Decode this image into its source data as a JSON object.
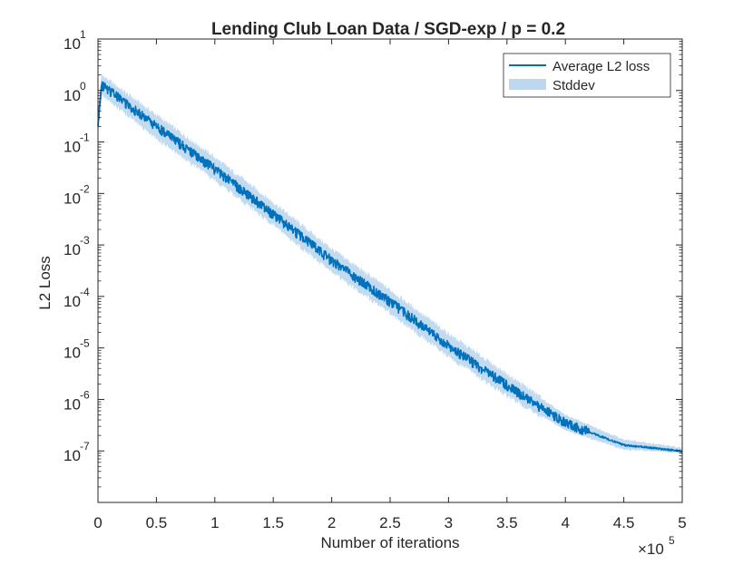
{
  "chart_data": {
    "type": "line",
    "title": "Lending Club Loan Data / SGD-exp  / p = 0.2",
    "xlabel": "Number of iterations",
    "ylabel": "L2 Loss",
    "x_multiplier_label": {
      "base": "×10",
      "exp": "5"
    },
    "x_scale": "linear",
    "y_scale": "log",
    "xlim": [
      0,
      500000
    ],
    "ylim": [
      1e-08,
      10
    ],
    "x_ticks": [
      {
        "value": 0,
        "label": "0"
      },
      {
        "value": 50000,
        "label": "0.5"
      },
      {
        "value": 100000,
        "label": "1"
      },
      {
        "value": 150000,
        "label": "1.5"
      },
      {
        "value": 200000,
        "label": "2"
      },
      {
        "value": 250000,
        "label": "2.5"
      },
      {
        "value": 300000,
        "label": "3"
      },
      {
        "value": 350000,
        "label": "3.5"
      },
      {
        "value": 400000,
        "label": "4"
      },
      {
        "value": 450000,
        "label": "4.5"
      },
      {
        "value": 500000,
        "label": "5"
      }
    ],
    "y_ticks": [
      {
        "value": 10,
        "base": "10",
        "exp": "1"
      },
      {
        "value": 1,
        "base": "10",
        "exp": "0"
      },
      {
        "value": 0.1,
        "base": "10",
        "exp": "-1"
      },
      {
        "value": 0.01,
        "base": "10",
        "exp": "-2"
      },
      {
        "value": 0.001,
        "base": "10",
        "exp": "-3"
      },
      {
        "value": 0.0001,
        "base": "10",
        "exp": "-4"
      },
      {
        "value": 1e-05,
        "base": "10",
        "exp": "-5"
      },
      {
        "value": 1e-06,
        "base": "10",
        "exp": "-6"
      },
      {
        "value": 1e-07,
        "base": "10",
        "exp": "-7"
      }
    ],
    "grid": false,
    "legend_position": "top-right",
    "series": [
      {
        "name": "Average L2 loss",
        "kind": "line",
        "color": "#0072BD",
        "x": [
          0,
          3000,
          50000,
          100000,
          150000,
          200000,
          250000,
          300000,
          350000,
          400000,
          450000,
          500000
        ],
        "y": [
          0.2,
          1.3,
          0.2,
          0.03,
          0.004,
          0.0005,
          8e-05,
          1.1e-05,
          1.9e-06,
          3.5e-07,
          1.3e-07,
          1e-07
        ]
      },
      {
        "name": "Stddev",
        "kind": "band",
        "color": "#BDD7EE",
        "x": [
          0,
          3000,
          50000,
          100000,
          150000,
          200000,
          250000,
          300000,
          350000,
          400000,
          450000,
          500000
        ],
        "upper": [
          0.3,
          1.8,
          0.3,
          0.045,
          0.006,
          0.00075,
          0.00012,
          1.7e-05,
          2.8e-06,
          4.8e-07,
          1.6e-07,
          1.1e-07
        ],
        "lower": [
          0.15,
          0.9,
          0.13,
          0.02,
          0.0027,
          0.00033,
          5.3e-05,
          7.5e-06,
          1.3e-06,
          2.6e-07,
          1.1e-07,
          9.5e-08
        ]
      }
    ]
  },
  "colors": {
    "line": "#0072BD",
    "band": "#BDD7EE",
    "axes": "#262626",
    "background": "#FFFFFF"
  }
}
